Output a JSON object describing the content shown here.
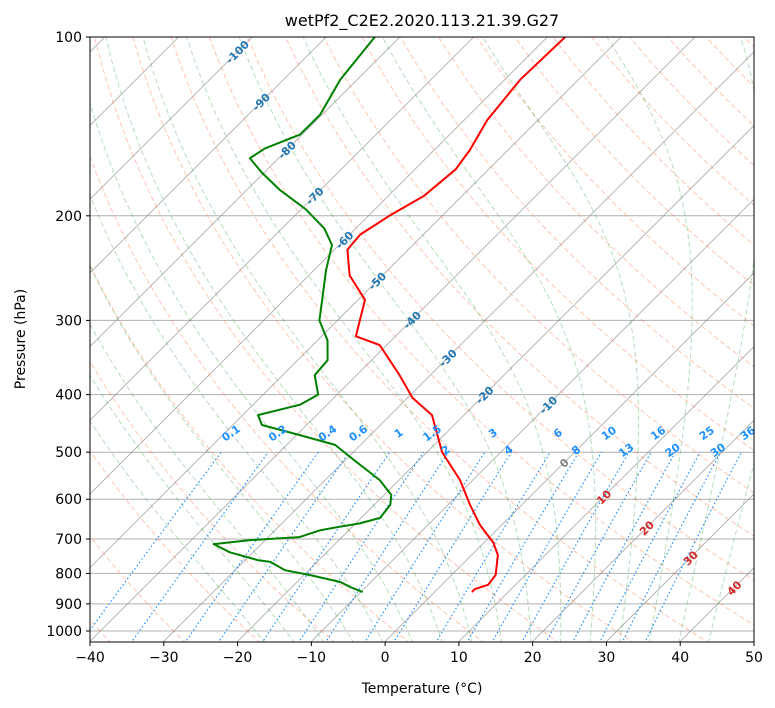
{
  "chart_data": {
    "type": "line",
    "subtype": "skew-t log-p",
    "title": "wetPf2_C2E2.2020.113.21.39.G27",
    "xlabel": "Temperature (°C)",
    "ylabel": "Pressure (hPa)",
    "xlim": [
      -40,
      50
    ],
    "ylim": [
      1046,
      100
    ],
    "x_ticks": [
      "−40",
      "−30",
      "−20",
      "−10",
      "0",
      "10",
      "20",
      "30",
      "40",
      "50"
    ],
    "y_ticks": [
      "100",
      "200",
      "300",
      "400",
      "500",
      "600",
      "700",
      "800",
      "900",
      "1000"
    ],
    "grid": true,
    "series": [
      {
        "name": "Temperature",
        "color": "#ff0000",
        "pressure": [
          860,
          850,
          836,
          805,
          745,
          710,
          663,
          613,
          557,
          500,
          433,
          405,
          371,
          330,
          319,
          277,
          252,
          228,
          215,
          200,
          185,
          167,
          155,
          138,
          118,
          100
        ],
        "values": [
          5.0,
          5.0,
          6.2,
          5.9,
          3.5,
          1.2,
          -3.0,
          -7.1,
          -11.8,
          -18.0,
          -24.4,
          -29.4,
          -34.2,
          -41.0,
          -45.4,
          -49.1,
          -54.5,
          -58.3,
          -58.6,
          -57.2,
          -55.2,
          -54.5,
          -55.2,
          -56.9,
          -57.9,
          -57.6
        ]
      },
      {
        "name": "Dewpoint",
        "color": "#008000",
        "pressure": [
          860,
          844,
          827,
          805,
          790,
          765,
          760,
          737,
          714,
          703,
          695,
          677,
          670,
          659,
          645,
          613,
          590,
          557,
          537,
          516,
          486,
          468,
          450,
          433,
          416,
          400,
          371,
          350,
          324,
          300,
          277,
          247,
          224,
          210,
          195,
          181,
          169,
          160,
          154,
          146,
          135,
          118,
          100
        ],
        "values": [
          -9.8,
          -12.1,
          -14.2,
          -19.3,
          -23.3,
          -26.4,
          -28.3,
          -33.2,
          -36.5,
          -32.1,
          -25.8,
          -24.0,
          -22.4,
          -19.5,
          -17.5,
          -17.9,
          -19.1,
          -22.7,
          -25.6,
          -28.8,
          -33.5,
          -39.6,
          -46.1,
          -48.0,
          -43.7,
          -42.6,
          -45.7,
          -46.0,
          -48.7,
          -52.5,
          -54.9,
          -58.4,
          -61.0,
          -64.3,
          -69.4,
          -75.5,
          -80.4,
          -83.9,
          -83.2,
          -80.3,
          -80.3,
          -82.3,
          -83.4
        ]
      }
    ],
    "isotherm_labels": [
      "-100",
      "-90",
      "-80",
      "-70",
      "-60",
      "-50",
      "-40",
      "-30",
      "-20",
      "-10",
      "0",
      "10",
      "20",
      "30",
      "40"
    ],
    "mixing_ratio_labels": [
      "0.1",
      "0.2",
      "0.4",
      "0.6",
      "1",
      "1.5",
      "2",
      "3",
      "4",
      "6",
      "8",
      "10",
      "13",
      "16",
      "20",
      "25",
      "30",
      "36"
    ],
    "colors": {
      "isotherm_neg": "#1f77b4",
      "isotherm_zero": "#808080",
      "isotherm_pos": "#d62728",
      "mixing_ratio": "#1e90ff",
      "dry_adiabat": "#ff7f50",
      "moist_adiabat": "#2ca02c",
      "isotherm_line": "#808080"
    }
  }
}
